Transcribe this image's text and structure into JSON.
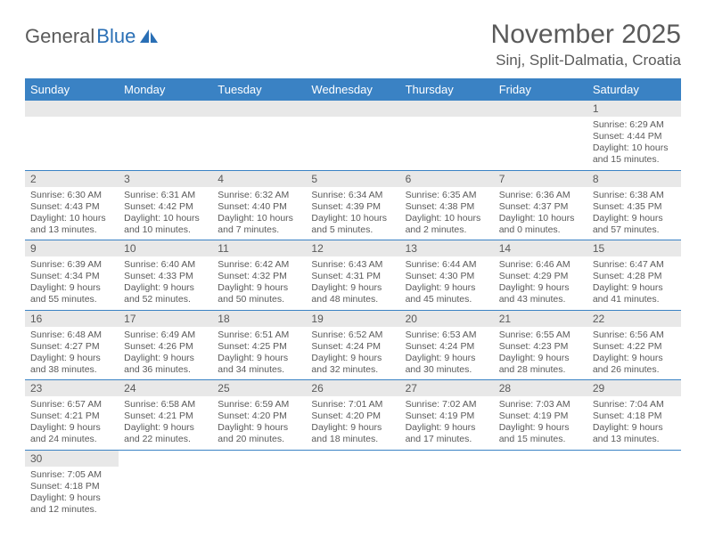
{
  "logo": {
    "text1": "General",
    "text2": "Blue"
  },
  "title": "November 2025",
  "location": "Sinj, Split-Dalmatia, Croatia",
  "colors": {
    "header_bg": "#3a82c4",
    "header_text": "#ffffff",
    "daynum_bg": "#e8e8e8",
    "text": "#5a5a5a",
    "row_border": "#3a82c4"
  },
  "font": {
    "title_size": 30,
    "location_size": 17,
    "dayheader_size": 13,
    "body_size": 10.5
  },
  "day_headers": [
    "Sunday",
    "Monday",
    "Tuesday",
    "Wednesday",
    "Thursday",
    "Friday",
    "Saturday"
  ],
  "weeks": [
    [
      null,
      null,
      null,
      null,
      null,
      null,
      {
        "n": "1",
        "sunrise": "6:29 AM",
        "sunset": "4:44 PM",
        "dl1": "Daylight: 10 hours",
        "dl2": "and 15 minutes."
      }
    ],
    [
      {
        "n": "2",
        "sunrise": "6:30 AM",
        "sunset": "4:43 PM",
        "dl1": "Daylight: 10 hours",
        "dl2": "and 13 minutes."
      },
      {
        "n": "3",
        "sunrise": "6:31 AM",
        "sunset": "4:42 PM",
        "dl1": "Daylight: 10 hours",
        "dl2": "and 10 minutes."
      },
      {
        "n": "4",
        "sunrise": "6:32 AM",
        "sunset": "4:40 PM",
        "dl1": "Daylight: 10 hours",
        "dl2": "and 7 minutes."
      },
      {
        "n": "5",
        "sunrise": "6:34 AM",
        "sunset": "4:39 PM",
        "dl1": "Daylight: 10 hours",
        "dl2": "and 5 minutes."
      },
      {
        "n": "6",
        "sunrise": "6:35 AM",
        "sunset": "4:38 PM",
        "dl1": "Daylight: 10 hours",
        "dl2": "and 2 minutes."
      },
      {
        "n": "7",
        "sunrise": "6:36 AM",
        "sunset": "4:37 PM",
        "dl1": "Daylight: 10 hours",
        "dl2": "and 0 minutes."
      },
      {
        "n": "8",
        "sunrise": "6:38 AM",
        "sunset": "4:35 PM",
        "dl1": "Daylight: 9 hours",
        "dl2": "and 57 minutes."
      }
    ],
    [
      {
        "n": "9",
        "sunrise": "6:39 AM",
        "sunset": "4:34 PM",
        "dl1": "Daylight: 9 hours",
        "dl2": "and 55 minutes."
      },
      {
        "n": "10",
        "sunrise": "6:40 AM",
        "sunset": "4:33 PM",
        "dl1": "Daylight: 9 hours",
        "dl2": "and 52 minutes."
      },
      {
        "n": "11",
        "sunrise": "6:42 AM",
        "sunset": "4:32 PM",
        "dl1": "Daylight: 9 hours",
        "dl2": "and 50 minutes."
      },
      {
        "n": "12",
        "sunrise": "6:43 AM",
        "sunset": "4:31 PM",
        "dl1": "Daylight: 9 hours",
        "dl2": "and 48 minutes."
      },
      {
        "n": "13",
        "sunrise": "6:44 AM",
        "sunset": "4:30 PM",
        "dl1": "Daylight: 9 hours",
        "dl2": "and 45 minutes."
      },
      {
        "n": "14",
        "sunrise": "6:46 AM",
        "sunset": "4:29 PM",
        "dl1": "Daylight: 9 hours",
        "dl2": "and 43 minutes."
      },
      {
        "n": "15",
        "sunrise": "6:47 AM",
        "sunset": "4:28 PM",
        "dl1": "Daylight: 9 hours",
        "dl2": "and 41 minutes."
      }
    ],
    [
      {
        "n": "16",
        "sunrise": "6:48 AM",
        "sunset": "4:27 PM",
        "dl1": "Daylight: 9 hours",
        "dl2": "and 38 minutes."
      },
      {
        "n": "17",
        "sunrise": "6:49 AM",
        "sunset": "4:26 PM",
        "dl1": "Daylight: 9 hours",
        "dl2": "and 36 minutes."
      },
      {
        "n": "18",
        "sunrise": "6:51 AM",
        "sunset": "4:25 PM",
        "dl1": "Daylight: 9 hours",
        "dl2": "and 34 minutes."
      },
      {
        "n": "19",
        "sunrise": "6:52 AM",
        "sunset": "4:24 PM",
        "dl1": "Daylight: 9 hours",
        "dl2": "and 32 minutes."
      },
      {
        "n": "20",
        "sunrise": "6:53 AM",
        "sunset": "4:24 PM",
        "dl1": "Daylight: 9 hours",
        "dl2": "and 30 minutes."
      },
      {
        "n": "21",
        "sunrise": "6:55 AM",
        "sunset": "4:23 PM",
        "dl1": "Daylight: 9 hours",
        "dl2": "and 28 minutes."
      },
      {
        "n": "22",
        "sunrise": "6:56 AM",
        "sunset": "4:22 PM",
        "dl1": "Daylight: 9 hours",
        "dl2": "and 26 minutes."
      }
    ],
    [
      {
        "n": "23",
        "sunrise": "6:57 AM",
        "sunset": "4:21 PM",
        "dl1": "Daylight: 9 hours",
        "dl2": "and 24 minutes."
      },
      {
        "n": "24",
        "sunrise": "6:58 AM",
        "sunset": "4:21 PM",
        "dl1": "Daylight: 9 hours",
        "dl2": "and 22 minutes."
      },
      {
        "n": "25",
        "sunrise": "6:59 AM",
        "sunset": "4:20 PM",
        "dl1": "Daylight: 9 hours",
        "dl2": "and 20 minutes."
      },
      {
        "n": "26",
        "sunrise": "7:01 AM",
        "sunset": "4:20 PM",
        "dl1": "Daylight: 9 hours",
        "dl2": "and 18 minutes."
      },
      {
        "n": "27",
        "sunrise": "7:02 AM",
        "sunset": "4:19 PM",
        "dl1": "Daylight: 9 hours",
        "dl2": "and 17 minutes."
      },
      {
        "n": "28",
        "sunrise": "7:03 AM",
        "sunset": "4:19 PM",
        "dl1": "Daylight: 9 hours",
        "dl2": "and 15 minutes."
      },
      {
        "n": "29",
        "sunrise": "7:04 AM",
        "sunset": "4:18 PM",
        "dl1": "Daylight: 9 hours",
        "dl2": "and 13 minutes."
      }
    ],
    [
      {
        "n": "30",
        "sunrise": "7:05 AM",
        "sunset": "4:18 PM",
        "dl1": "Daylight: 9 hours",
        "dl2": "and 12 minutes."
      },
      null,
      null,
      null,
      null,
      null,
      null
    ]
  ],
  "labels": {
    "sunrise_prefix": "Sunrise: ",
    "sunset_prefix": "Sunset: "
  }
}
